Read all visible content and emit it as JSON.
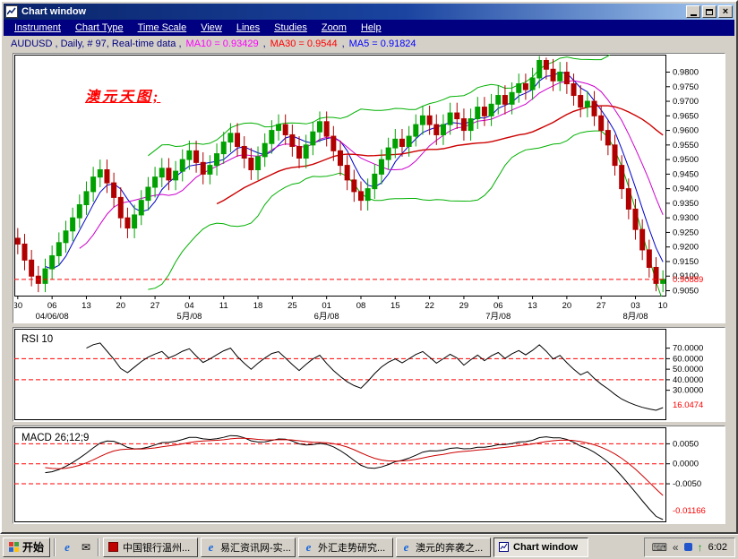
{
  "window": {
    "title": "Chart window"
  },
  "menu": {
    "items": [
      "Instrument",
      "Chart Type",
      "Time Scale",
      "View",
      "Lines",
      "Studies",
      "Zoom",
      "Help"
    ]
  },
  "info_bar": {
    "segments": [
      {
        "text": "AUDUSD , Daily, # 97, Real-time data ,",
        "color": "#000080"
      },
      {
        "text": "MA10 = 0.93429",
        "color": "#ff00ff"
      },
      {
        "text": ",",
        "color": "#000080"
      },
      {
        "text": "MA30 = 0.9544",
        "color": "#ff0000"
      },
      {
        "text": ",",
        "color": "#000080"
      },
      {
        "text": "MA5 = 0.91824",
        "color": "#0000ff"
      }
    ]
  },
  "annotation": {
    "text": "澳元天图;",
    "color": "#ff0000"
  },
  "chart_data": {
    "type": "candlestick",
    "instrument": "AUDUSD",
    "timeframe": "Daily",
    "main": {
      "ylim": [
        0.903,
        0.986
      ],
      "yticks": [
        0.98,
        0.975,
        0.97,
        0.965,
        0.96,
        0.955,
        0.95,
        0.945,
        0.94,
        0.935,
        0.93,
        0.925,
        0.92,
        0.915,
        0.91,
        0.905
      ],
      "current_price": 0.90889,
      "current_price_label": "0.90889",
      "colors": {
        "candle_up": "#00a000",
        "candle_down": "#b00000",
        "ma5": "#0000cc",
        "ma10": "#cc00cc",
        "ma30": "#cc0000",
        "bollinger": "#00b000",
        "current_line": "#ff0000"
      },
      "xticks": {
        "indices": [
          0,
          5,
          10,
          15,
          20,
          25,
          30,
          35,
          40,
          45,
          50,
          55,
          60,
          65,
          70,
          75,
          80,
          85,
          90,
          95
        ],
        "labels": [
          "30",
          "06",
          "13",
          "20",
          "27",
          "04",
          "11",
          "18",
          "25",
          "01",
          "08",
          "15",
          "22",
          "29",
          "06",
          "13",
          "20",
          "27",
          "03",
          "10"
        ]
      },
      "month_labels": [
        {
          "index": 5,
          "label": "04/06/08"
        },
        {
          "index": 25,
          "label": "5月/08"
        },
        {
          "index": 45,
          "label": "6月/08"
        },
        {
          "index": 70,
          "label": "7月/08"
        },
        {
          "index": 90,
          "label": "8月/08"
        }
      ],
      "candles": [
        [
          0.923,
          0.9265,
          0.9175,
          0.921
        ],
        [
          0.921,
          0.9245,
          0.912,
          0.9155
        ],
        [
          0.9155,
          0.919,
          0.9065,
          0.91
        ],
        [
          0.91,
          0.9135,
          0.9045,
          0.9075
        ],
        [
          0.9075,
          0.916,
          0.9045,
          0.9125
        ],
        [
          0.9125,
          0.9205,
          0.909,
          0.917
        ],
        [
          0.917,
          0.925,
          0.9135,
          0.9215
        ],
        [
          0.9215,
          0.929,
          0.918,
          0.9255
        ],
        [
          0.9255,
          0.9335,
          0.922,
          0.93
        ],
        [
          0.93,
          0.938,
          0.9265,
          0.9345
        ],
        [
          0.9345,
          0.9425,
          0.931,
          0.939
        ],
        [
          0.939,
          0.9475,
          0.9355,
          0.944
        ],
        [
          0.944,
          0.95,
          0.9405,
          0.9465
        ],
        [
          0.9465,
          0.95,
          0.9385,
          0.942
        ],
        [
          0.942,
          0.9455,
          0.9335,
          0.937
        ],
        [
          0.937,
          0.9405,
          0.9265,
          0.93
        ],
        [
          0.93,
          0.9335,
          0.923,
          0.9265
        ],
        [
          0.9265,
          0.9345,
          0.923,
          0.931
        ],
        [
          0.931,
          0.9395,
          0.9275,
          0.936
        ],
        [
          0.936,
          0.944,
          0.9325,
          0.9405
        ],
        [
          0.9405,
          0.9475,
          0.937,
          0.944
        ],
        [
          0.944,
          0.9505,
          0.9405,
          0.947
        ],
        [
          0.947,
          0.9505,
          0.9395,
          0.943
        ],
        [
          0.943,
          0.9495,
          0.9395,
          0.946
        ],
        [
          0.946,
          0.9535,
          0.9425,
          0.95
        ],
        [
          0.95,
          0.9565,
          0.9465,
          0.953
        ],
        [
          0.953,
          0.9565,
          0.9455,
          0.949
        ],
        [
          0.949,
          0.9525,
          0.9415,
          0.945
        ],
        [
          0.945,
          0.9515,
          0.9415,
          0.948
        ],
        [
          0.948,
          0.9555,
          0.9445,
          0.952
        ],
        [
          0.952,
          0.9595,
          0.9485,
          0.956
        ],
        [
          0.956,
          0.9625,
          0.9525,
          0.959
        ],
        [
          0.959,
          0.9625,
          0.951,
          0.9545
        ],
        [
          0.9545,
          0.958,
          0.947,
          0.9505
        ],
        [
          0.9505,
          0.954,
          0.943,
          0.9465
        ],
        [
          0.9465,
          0.9545,
          0.943,
          0.951
        ],
        [
          0.951,
          0.959,
          0.9475,
          0.9555
        ],
        [
          0.9555,
          0.9635,
          0.952,
          0.96
        ],
        [
          0.96,
          0.9655,
          0.9565,
          0.962
        ],
        [
          0.962,
          0.9655,
          0.955,
          0.9585
        ],
        [
          0.9585,
          0.962,
          0.951,
          0.9545
        ],
        [
          0.9545,
          0.958,
          0.947,
          0.9505
        ],
        [
          0.9505,
          0.9585,
          0.947,
          0.955
        ],
        [
          0.955,
          0.963,
          0.9515,
          0.9595
        ],
        [
          0.9595,
          0.9665,
          0.956,
          0.963
        ],
        [
          0.963,
          0.9665,
          0.9545,
          0.958
        ],
        [
          0.958,
          0.9615,
          0.9495,
          0.953
        ],
        [
          0.953,
          0.9565,
          0.9445,
          0.948
        ],
        [
          0.948,
          0.9515,
          0.9395,
          0.943
        ],
        [
          0.943,
          0.9465,
          0.9355,
          0.939
        ],
        [
          0.939,
          0.9425,
          0.9325,
          0.936
        ],
        [
          0.936,
          0.9435,
          0.9325,
          0.94
        ],
        [
          0.94,
          0.9485,
          0.9365,
          0.945
        ],
        [
          0.945,
          0.9535,
          0.9415,
          0.95
        ],
        [
          0.95,
          0.9575,
          0.9465,
          0.954
        ],
        [
          0.954,
          0.9605,
          0.9505,
          0.957
        ],
        [
          0.957,
          0.9605,
          0.951,
          0.9545
        ],
        [
          0.9545,
          0.9615,
          0.951,
          0.958
        ],
        [
          0.958,
          0.9655,
          0.9545,
          0.962
        ],
        [
          0.962,
          0.9685,
          0.9585,
          0.965
        ],
        [
          0.965,
          0.9685,
          0.9585,
          0.962
        ],
        [
          0.962,
          0.9655,
          0.955,
          0.9585
        ],
        [
          0.9585,
          0.9655,
          0.955,
          0.962
        ],
        [
          0.962,
          0.9695,
          0.9585,
          0.966
        ],
        [
          0.966,
          0.9695,
          0.9605,
          0.964
        ],
        [
          0.964,
          0.9675,
          0.9565,
          0.96
        ],
        [
          0.96,
          0.9675,
          0.9565,
          0.964
        ],
        [
          0.964,
          0.9715,
          0.9605,
          0.968
        ],
        [
          0.968,
          0.9715,
          0.9615,
          0.965
        ],
        [
          0.965,
          0.9725,
          0.9615,
          0.969
        ],
        [
          0.969,
          0.9755,
          0.9655,
          0.972
        ],
        [
          0.972,
          0.9755,
          0.9655,
          0.969
        ],
        [
          0.969,
          0.9765,
          0.9655,
          0.973
        ],
        [
          0.973,
          0.9795,
          0.9695,
          0.976
        ],
        [
          0.976,
          0.9795,
          0.9705,
          0.974
        ],
        [
          0.974,
          0.9815,
          0.9705,
          0.978
        ],
        [
          0.978,
          0.9855,
          0.9745,
          0.984
        ],
        [
          0.984,
          0.985,
          0.9775,
          0.981
        ],
        [
          0.981,
          0.9845,
          0.9735,
          0.977
        ],
        [
          0.977,
          0.9835,
          0.9735,
          0.98
        ],
        [
          0.98,
          0.9835,
          0.9725,
          0.976
        ],
        [
          0.976,
          0.9795,
          0.9685,
          0.972
        ],
        [
          0.972,
          0.9755,
          0.9645,
          0.968
        ],
        [
          0.968,
          0.9735,
          0.9645,
          0.97
        ],
        [
          0.97,
          0.9735,
          0.9615,
          0.965
        ],
        [
          0.965,
          0.9685,
          0.9565,
          0.96
        ],
        [
          0.96,
          0.9635,
          0.9515,
          0.955
        ],
        [
          0.955,
          0.9585,
          0.9445,
          0.948
        ],
        [
          0.948,
          0.9515,
          0.9365,
          0.94
        ],
        [
          0.94,
          0.9435,
          0.9295,
          0.933
        ],
        [
          0.933,
          0.9365,
          0.9225,
          0.926
        ],
        [
          0.926,
          0.9295,
          0.9155,
          0.919
        ],
        [
          0.919,
          0.9225,
          0.9095,
          0.913
        ],
        [
          0.913,
          0.9165,
          0.9048,
          0.9075
        ],
        [
          0.9075,
          0.912,
          0.9045,
          0.9089
        ]
      ]
    },
    "rsi": {
      "label": "RSI 10",
      "period": 10,
      "ylim": [
        5,
        85
      ],
      "ytick_values": [
        70,
        60,
        50,
        40,
        30
      ],
      "guides": [
        60,
        40
      ],
      "current_value": 16.0474,
      "current_label": "16.0474"
    },
    "macd": {
      "label": "MACD 26;12;9",
      "params": [
        26,
        12,
        9
      ],
      "ylim": [
        -0.0135,
        0.008
      ],
      "ytick_values": [
        0.005,
        0,
        -0.005
      ],
      "guides": [
        0.005,
        0,
        -0.005
      ],
      "current_value": -0.01166,
      "current_label": "-0.01166",
      "signal_color": "#cc0000",
      "macd_color": "#000000"
    }
  },
  "taskbar": {
    "start_label": "开始",
    "tasks": [
      {
        "label": "中国银行温州...",
        "icon": "bank-icon",
        "active": false
      },
      {
        "label": "易汇资讯网-实...",
        "icon": "ie-icon",
        "active": false
      },
      {
        "label": "外汇走势研究...",
        "icon": "ie-icon",
        "active": false
      },
      {
        "label": "澳元的奔袭之...",
        "icon": "ie-icon",
        "active": false
      },
      {
        "label": "Chart window",
        "icon": "chart-icon",
        "active": true
      }
    ],
    "tray": {
      "time": "6:02"
    }
  }
}
